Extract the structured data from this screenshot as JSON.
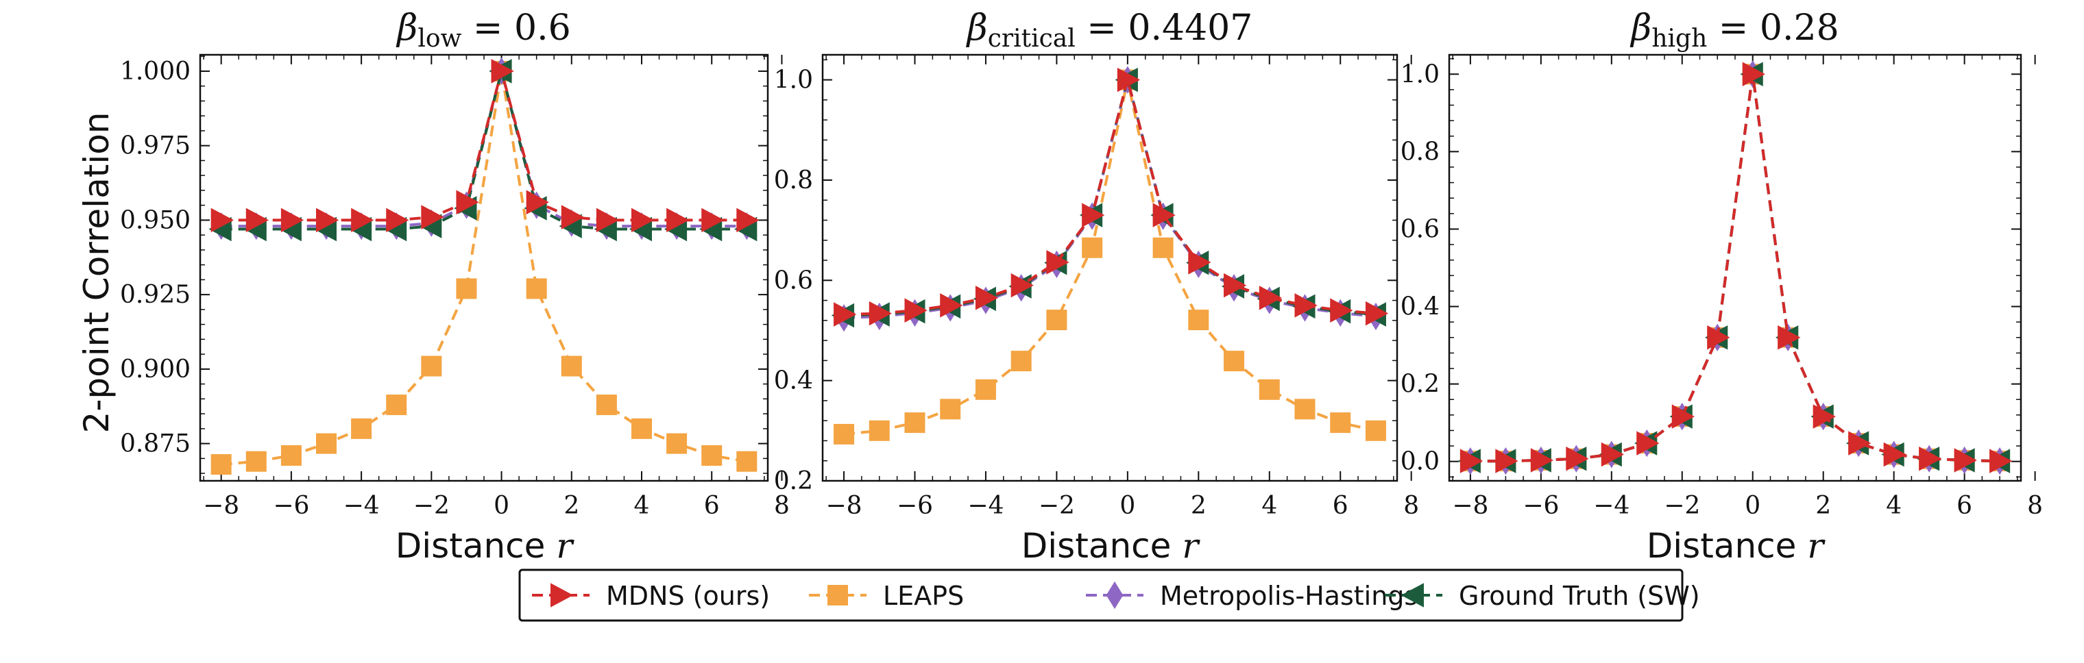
{
  "figure_label": "Two-point correlation vs distance for three temperatures",
  "chart_data": [
    {
      "type": "line",
      "title": "β_low = 0.6",
      "title_symbol": "β",
      "title_sub": "low",
      "title_value": " = 0.6",
      "xlabel_text": "Distance ",
      "xlabel_var": "r",
      "ylabel": "2-point Correlation",
      "xlim": [
        -8.6,
        7.6
      ],
      "ylim": [
        0.8625,
        1.0055
      ],
      "xticks": [
        -8,
        -6,
        -4,
        -2,
        0,
        2,
        4,
        6,
        8
      ],
      "xtick_labels": [
        "−8",
        "−6",
        "−4",
        "−2",
        "0",
        "2",
        "4",
        "6",
        "8"
      ],
      "yticks": [
        0.875,
        0.9,
        0.925,
        0.95,
        0.975,
        1.0
      ],
      "ytick_labels": [
        "0.875",
        "0.900",
        "0.925",
        "0.950",
        "0.975",
        "1.000"
      ],
      "x": [
        -8,
        -7,
        -6,
        -5,
        -4,
        -3,
        -2,
        -1,
        0,
        1,
        2,
        3,
        4,
        5,
        6,
        7
      ],
      "series": [
        {
          "name": "LEAPS",
          "values": [
            0.868,
            0.869,
            0.871,
            0.875,
            0.88,
            0.888,
            0.901,
            0.927,
            1.0,
            0.927,
            0.901,
            0.888,
            0.88,
            0.875,
            0.871,
            0.869
          ]
        },
        {
          "name": "Metropolis-Hastings",
          "values": [
            0.948,
            0.948,
            0.948,
            0.948,
            0.948,
            0.948,
            0.949,
            0.955,
            1.0,
            0.955,
            0.949,
            0.948,
            0.948,
            0.948,
            0.948,
            0.948
          ]
        },
        {
          "name": "Ground Truth (SW)",
          "values": [
            0.947,
            0.947,
            0.947,
            0.947,
            0.947,
            0.947,
            0.948,
            0.954,
            1.0,
            0.954,
            0.948,
            0.947,
            0.947,
            0.947,
            0.947,
            0.947
          ]
        },
        {
          "name": "MDNS (ours)",
          "values": [
            0.95,
            0.95,
            0.95,
            0.95,
            0.95,
            0.95,
            0.951,
            0.956,
            1.0,
            0.956,
            0.951,
            0.95,
            0.95,
            0.95,
            0.95,
            0.95
          ]
        }
      ]
    },
    {
      "type": "line",
      "title": "β_critical = 0.4407",
      "title_symbol": "β",
      "title_sub": "critical",
      "title_value": " = 0.4407",
      "xlabel_text": "Distance ",
      "xlabel_var": "r",
      "ylabel": "",
      "xlim": [
        -8.6,
        7.6
      ],
      "ylim": [
        0.2,
        1.05
      ],
      "xticks": [
        -8,
        -6,
        -4,
        -2,
        0,
        2,
        4,
        6,
        8
      ],
      "xtick_labels": [
        "−8",
        "−6",
        "−4",
        "−2",
        "0",
        "2",
        "4",
        "6",
        "8"
      ],
      "yticks": [
        0.2,
        0.4,
        0.6,
        0.8,
        1.0
      ],
      "ytick_labels": [
        "0.2",
        "0.4",
        "0.6",
        "0.8",
        "1.0"
      ],
      "x": [
        -8,
        -7,
        -6,
        -5,
        -4,
        -3,
        -2,
        -1,
        0,
        1,
        2,
        3,
        4,
        5,
        6,
        7
      ],
      "series": [
        {
          "name": "LEAPS",
          "values": [
            0.293,
            0.3,
            0.316,
            0.343,
            0.382,
            0.439,
            0.521,
            0.665,
            1.0,
            0.665,
            0.521,
            0.439,
            0.382,
            0.343,
            0.316,
            0.3
          ]
        },
        {
          "name": "Metropolis-Hastings",
          "values": [
            0.525,
            0.528,
            0.535,
            0.545,
            0.56,
            0.585,
            0.632,
            0.728,
            1.0,
            0.728,
            0.632,
            0.585,
            0.56,
            0.545,
            0.535,
            0.528
          ]
        },
        {
          "name": "Ground Truth (SW)",
          "values": [
            0.53,
            0.532,
            0.538,
            0.548,
            0.563,
            0.588,
            0.635,
            0.73,
            1.0,
            0.73,
            0.635,
            0.588,
            0.563,
            0.548,
            0.538,
            0.532
          ]
        },
        {
          "name": "MDNS (ours)",
          "values": [
            0.532,
            0.534,
            0.54,
            0.55,
            0.565,
            0.59,
            0.636,
            0.73,
            1.0,
            0.73,
            0.636,
            0.59,
            0.565,
            0.55,
            0.54,
            0.534
          ]
        }
      ]
    },
    {
      "type": "line",
      "title": "β_high = 0.28",
      "title_symbol": "β",
      "title_sub": "high",
      "title_value": " = 0.28",
      "xlabel_text": "Distance ",
      "xlabel_var": "r",
      "ylabel": "",
      "xlim": [
        -8.6,
        7.6
      ],
      "ylim": [
        -0.05,
        1.05
      ],
      "xticks": [
        -8,
        -6,
        -4,
        -2,
        0,
        2,
        4,
        6,
        8
      ],
      "xtick_labels": [
        "−8",
        "−6",
        "−4",
        "−2",
        "0",
        "2",
        "4",
        "6",
        "8"
      ],
      "yticks": [
        0.0,
        0.2,
        0.4,
        0.6,
        0.8,
        1.0
      ],
      "ytick_labels": [
        "0.0",
        "0.2",
        "0.4",
        "0.6",
        "0.8",
        "1.0"
      ],
      "x": [
        -8,
        -7,
        -6,
        -5,
        -4,
        -3,
        -2,
        -1,
        0,
        1,
        2,
        3,
        4,
        5,
        6,
        7
      ],
      "series": [
        {
          "name": "LEAPS",
          "values": [
            0.001,
            0.001,
            0.003,
            0.007,
            0.018,
            0.047,
            0.116,
            0.32,
            1.0,
            0.32,
            0.116,
            0.047,
            0.018,
            0.007,
            0.003,
            0.001
          ]
        },
        {
          "name": "Metropolis-Hastings",
          "values": [
            0.001,
            0.001,
            0.003,
            0.007,
            0.018,
            0.047,
            0.116,
            0.32,
            1.0,
            0.32,
            0.116,
            0.047,
            0.018,
            0.007,
            0.003,
            0.001
          ]
        },
        {
          "name": "Ground Truth (SW)",
          "values": [
            0.001,
            0.001,
            0.003,
            0.007,
            0.018,
            0.047,
            0.116,
            0.32,
            1.0,
            0.32,
            0.116,
            0.047,
            0.018,
            0.007,
            0.003,
            0.001
          ]
        },
        {
          "name": "MDNS (ours)",
          "values": [
            0.001,
            0.001,
            0.003,
            0.007,
            0.018,
            0.047,
            0.116,
            0.32,
            1.0,
            0.32,
            0.116,
            0.047,
            0.018,
            0.007,
            0.003,
            0.001
          ]
        }
      ]
    }
  ],
  "series_styles": {
    "LEAPS": {
      "color": "#f4a442",
      "marker": "square",
      "icon": "square-marker-icon"
    },
    "Metropolis-Hastings": {
      "color": "#8e67c4",
      "marker": "diamond",
      "icon": "diamond-marker-icon"
    },
    "Ground Truth (SW)": {
      "color": "#1c5c3c",
      "marker": "triangle-left",
      "icon": "left-triangle-marker-icon"
    },
    "MDNS (ours)": {
      "color": "#d42a2a",
      "marker": "triangle-right",
      "icon": "right-triangle-marker-icon"
    }
  },
  "legend": {
    "position": "bottom-center",
    "items": [
      "MDNS (ours)",
      "LEAPS",
      "Metropolis-Hastings",
      "Ground Truth (SW)"
    ]
  }
}
